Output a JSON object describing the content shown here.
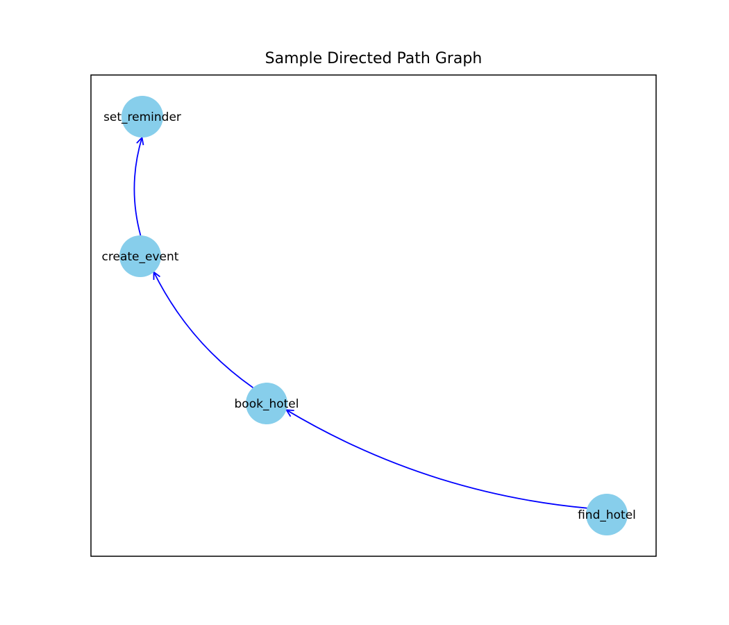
{
  "title": "Sample Directed Path Graph",
  "colors": {
    "node_fill": "#87CEEB",
    "edge": "#0000FF",
    "frame": "#000000",
    "background": "#FFFFFF"
  },
  "graph": {
    "directed": true,
    "nodes": [
      {
        "id": "set_reminder",
        "label": "set_reminder"
      },
      {
        "id": "create_event",
        "label": "create_event"
      },
      {
        "id": "book_hotel",
        "label": "book_hotel"
      },
      {
        "id": "find_hotel",
        "label": "find_hotel"
      }
    ],
    "edges": [
      {
        "from": "find_hotel",
        "to": "book_hotel"
      },
      {
        "from": "book_hotel",
        "to": "create_event"
      },
      {
        "from": "create_event",
        "to": "set_reminder"
      }
    ]
  }
}
